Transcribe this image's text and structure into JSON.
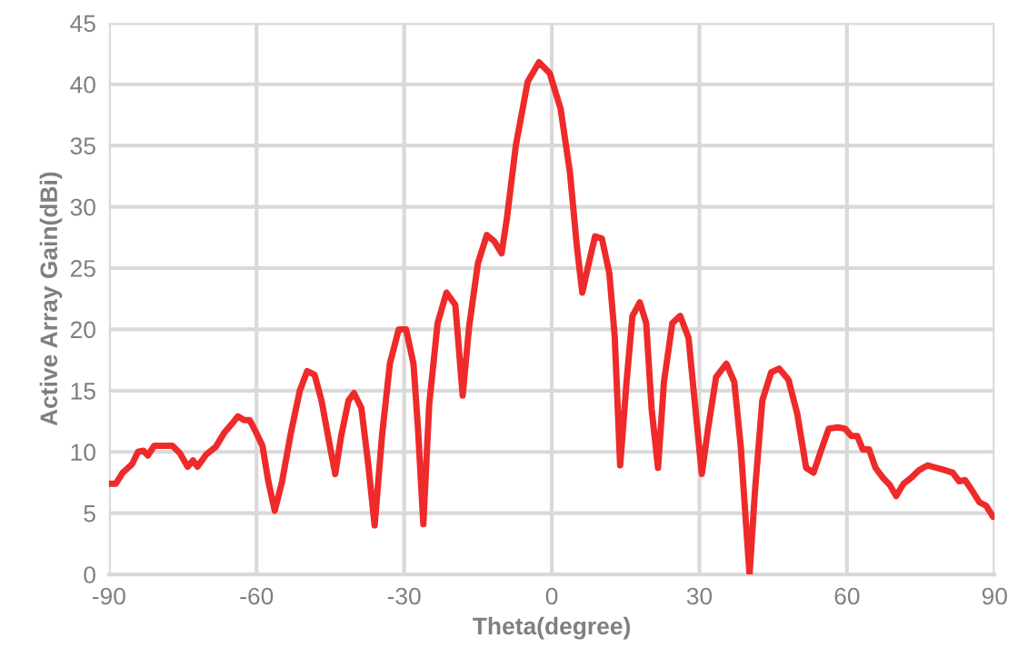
{
  "chart_data": {
    "type": "line",
    "xlabel": "Theta(degree)",
    "ylabel": "Active Array Gain(dBi)",
    "xlim": [
      -90,
      90
    ],
    "xticks": [
      -90,
      -60,
      -30,
      0,
      30,
      60,
      90
    ],
    "ylim": [
      0,
      45
    ],
    "yticks": [
      0,
      5,
      10,
      15,
      20,
      25,
      30,
      35,
      40,
      45
    ],
    "grid": true,
    "marker": "none",
    "line_style": "solid",
    "series": [
      {
        "color": "#ee2a2a",
        "x": [
          -90,
          -88.6,
          -87.2,
          -85.3,
          -84.1,
          -83.0,
          -82.1,
          -80.8,
          -77.1,
          -75.6,
          -74.0,
          -72.9,
          -72.0,
          -70.2,
          -68.3,
          -66.5,
          -65.2,
          -63.8,
          -62.5,
          -61.4,
          -60.1,
          -58.8,
          -57.6,
          -56.3,
          -54.8,
          -53.0,
          -51.2,
          -49.7,
          -48.2,
          -46.8,
          -45.1,
          -44.0,
          -42.8,
          -41.3,
          -40.2,
          -38.7,
          -37.3,
          -36.0,
          -34.5,
          -32.9,
          -31.1,
          -29.6,
          -28.1,
          -27.2,
          -26.1,
          -24.9,
          -23.2,
          -21.4,
          -19.6,
          -18.1,
          -16.8,
          -15.0,
          -13.2,
          -11.7,
          -10.2,
          -9.1,
          -7.3,
          -4.9,
          -2.6,
          -0.4,
          1.8,
          3.7,
          5.1,
          6.2,
          7.3,
          8.8,
          10.2,
          11.7,
          12.8,
          13.9,
          15.2,
          16.4,
          17.9,
          19.2,
          20.3,
          21.6,
          22.8,
          24.5,
          26.1,
          27.8,
          29.2,
          30.5,
          31.8,
          33.4,
          35.5,
          37.1,
          38.4,
          39.5,
          40.2,
          41.3,
          42.8,
          44.6,
          46.2,
          48.1,
          49.9,
          51.7,
          53.2,
          54.8,
          56.3,
          58.1,
          59.6,
          60.9,
          62.1,
          63.2,
          64.5,
          65.8,
          67.3,
          68.7,
          70.0,
          71.5,
          73.1,
          74.6,
          76.4,
          78.2,
          80.0,
          81.5,
          82.8,
          84.0,
          85.5,
          86.9,
          88.3,
          89.7
        ],
        "values": [
          7.4,
          7.4,
          8.3,
          9.0,
          10.0,
          10.1,
          9.7,
          10.5,
          10.5,
          9.9,
          8.8,
          9.3,
          8.8,
          9.8,
          10.4,
          11.6,
          12.2,
          12.9,
          12.6,
          12.6,
          11.6,
          10.5,
          7.6,
          5.2,
          7.6,
          11.6,
          15.0,
          16.6,
          16.3,
          14.2,
          10.5,
          8.2,
          11.3,
          14.2,
          14.8,
          13.6,
          9.0,
          4.0,
          11.3,
          17.2,
          20.0,
          20.0,
          17.2,
          12.0,
          4.1,
          13.9,
          20.5,
          23.0,
          22.0,
          14.6,
          20.2,
          25.4,
          27.7,
          27.2,
          26.2,
          29.1,
          35.0,
          40.2,
          41.8,
          40.9,
          38.0,
          32.8,
          26.8,
          23.0,
          25.0,
          27.6,
          27.4,
          24.6,
          19.4,
          8.9,
          15.7,
          21.1,
          22.2,
          20.5,
          13.5,
          8.7,
          15.7,
          20.5,
          21.1,
          19.3,
          13.5,
          8.2,
          12.0,
          16.1,
          17.2,
          15.7,
          10.5,
          4.0,
          0,
          6.8,
          14.2,
          16.5,
          16.8,
          15.9,
          13.1,
          8.7,
          8.3,
          10.2,
          11.9,
          12.0,
          11.9,
          11.3,
          11.3,
          10.2,
          10.2,
          8.7,
          7.9,
          7.3,
          6.4,
          7.4,
          7.9,
          8.5,
          8.9,
          8.7,
          8.5,
          8.3,
          7.6,
          7.7,
          6.8,
          5.9,
          5.6,
          4.7
        ]
      }
    ]
  }
}
